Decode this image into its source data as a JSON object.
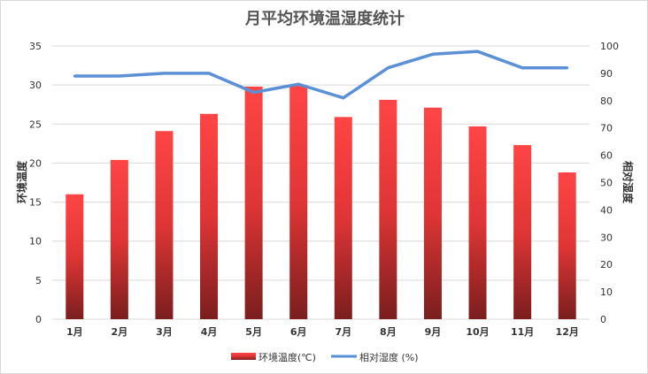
{
  "chart_data": {
    "type": "bar+line",
    "title": "月平均环境温湿度统计",
    "categories": [
      "1月",
      "2月",
      "3月",
      "4月",
      "5月",
      "6月",
      "7月",
      "8月",
      "9月",
      "10月",
      "11月",
      "12月"
    ],
    "series": [
      {
        "name": "环境温度(℃)",
        "type": "bar",
        "axis": "left",
        "values": [
          16.0,
          20.4,
          24.1,
          26.3,
          29.8,
          29.9,
          25.9,
          28.1,
          27.1,
          24.7,
          22.3,
          18.8
        ],
        "color": "#ff4040"
      },
      {
        "name": "相对湿度 (%)",
        "type": "line",
        "axis": "right",
        "values": [
          89,
          89,
          90,
          90,
          83,
          86,
          81,
          92,
          97,
          98,
          92,
          92
        ],
        "color": "#5b8fd6"
      }
    ],
    "ylabel": "环境温度",
    "y2label": "相对湿度",
    "ylim": [
      0,
      35
    ],
    "y2lim": [
      0,
      100
    ],
    "yticks": [
      0,
      5,
      10,
      15,
      20,
      25,
      30,
      35
    ],
    "y2ticks": [
      0,
      10,
      20,
      30,
      40,
      50,
      60,
      70,
      80,
      90,
      100
    ],
    "grid": true,
    "legend": "bottom"
  }
}
